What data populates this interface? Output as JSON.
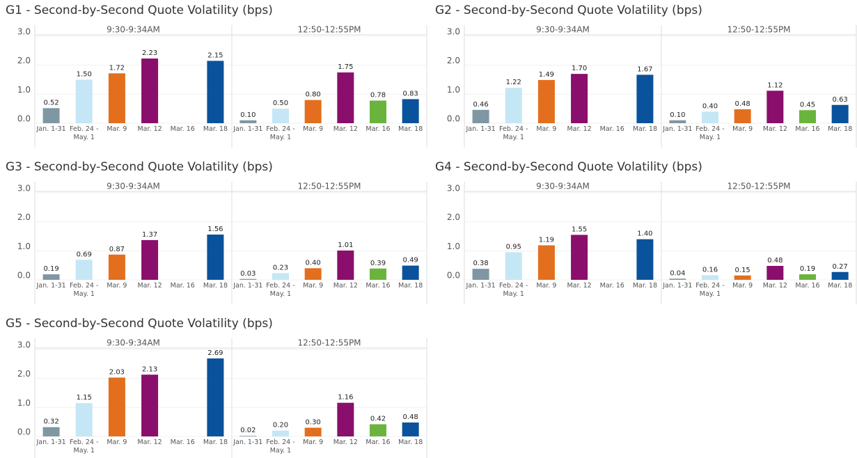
{
  "chart_data": [
    {
      "type": "bar",
      "title": "G1 - Second-by-Second Quote Volatility (bps)",
      "ylim": [
        0,
        3
      ],
      "yticks": [
        {
          "value": 0,
          "label": "0.0"
        },
        {
          "value": 1,
          "label": "1.0"
        },
        {
          "value": 2,
          "label": "2.0"
        },
        {
          "value": 3,
          "label": "3.0"
        }
      ],
      "grid": true,
      "colors": [
        "#7f97a2",
        "#c5e6f5",
        "#e36f1e",
        "#8a0e6c",
        "#6ab43e",
        "#0b529c"
      ],
      "panels": [
        {
          "title": "9:30-9:34AM",
          "categories": [
            "Jan. 1-31",
            "Feb. 24 - May. 1",
            "Mar. 9",
            "Mar. 12",
            "Mar. 16",
            "Mar. 18"
          ],
          "values": [
            0.52,
            1.5,
            1.72,
            2.23,
            null,
            2.15
          ],
          "value_labels": [
            "0.52",
            "1.50",
            "1.72",
            "2.23",
            null,
            "2.15"
          ]
        },
        {
          "title": "12:50-12:55PM",
          "categories": [
            "Jan. 1-31",
            "Feb. 24 - May. 1",
            "Mar. 9",
            "Mar. 12",
            "Mar. 16",
            "Mar. 18"
          ],
          "values": [
            0.1,
            0.5,
            0.8,
            1.75,
            0.78,
            0.83
          ],
          "value_labels": [
            "0.10",
            "0.50",
            "0.80",
            "1.75",
            "0.78",
            "0.83"
          ]
        }
      ]
    },
    {
      "type": "bar",
      "title": "G2 - Second-by-Second Quote Volatility (bps)",
      "ylim": [
        0,
        3
      ],
      "yticks": [
        {
          "value": 0,
          "label": "0.0"
        },
        {
          "value": 1,
          "label": "1.0"
        },
        {
          "value": 2,
          "label": "2.0"
        },
        {
          "value": 3,
          "label": "3.0"
        }
      ],
      "grid": true,
      "colors": [
        "#7f97a2",
        "#c5e6f5",
        "#e36f1e",
        "#8a0e6c",
        "#6ab43e",
        "#0b529c"
      ],
      "panels": [
        {
          "title": "9:30-9:34AM",
          "categories": [
            "Jan. 1-31",
            "Feb. 24 - May. 1",
            "Mar. 9",
            "Mar. 12",
            "Mar. 16",
            "Mar. 18"
          ],
          "values": [
            0.46,
            1.22,
            1.49,
            1.7,
            null,
            1.67
          ],
          "value_labels": [
            "0.46",
            "1.22",
            "1.49",
            "1.70",
            null,
            "1.67"
          ]
        },
        {
          "title": "12:50-12:55PM",
          "categories": [
            "Jan. 1-31",
            "Feb. 24 - May. 1",
            "Mar. 9",
            "Mar. 12",
            "Mar. 16",
            "Mar. 18"
          ],
          "values": [
            0.1,
            0.4,
            0.48,
            1.12,
            0.45,
            0.63
          ],
          "value_labels": [
            "0.10",
            "0.40",
            "0.48",
            "1.12",
            "0.45",
            "0.63"
          ]
        }
      ]
    },
    {
      "type": "bar",
      "title": "G3 - Second-by-Second Quote Volatility (bps)",
      "ylim": [
        0,
        3
      ],
      "yticks": [
        {
          "value": 0,
          "label": "0.0"
        },
        {
          "value": 1,
          "label": "1.0"
        },
        {
          "value": 2,
          "label": "2.0"
        },
        {
          "value": 3,
          "label": "3.0"
        }
      ],
      "grid": true,
      "colors": [
        "#7f97a2",
        "#c5e6f5",
        "#e36f1e",
        "#8a0e6c",
        "#6ab43e",
        "#0b529c"
      ],
      "panels": [
        {
          "title": "9:30-9:34AM",
          "categories": [
            "Jan. 1-31",
            "Feb. 24 - May. 1",
            "Mar. 9",
            "Mar. 12",
            "Mar. 16",
            "Mar. 18"
          ],
          "values": [
            0.19,
            0.69,
            0.87,
            1.37,
            null,
            1.56
          ],
          "value_labels": [
            "0.19",
            "0.69",
            "0.87",
            "1.37",
            null,
            "1.56"
          ]
        },
        {
          "title": "12:50-12:55PM",
          "categories": [
            "Jan. 1-31",
            "Feb. 24 - May. 1",
            "Mar. 9",
            "Mar. 12",
            "Mar. 16",
            "Mar. 18"
          ],
          "values": [
            0.03,
            0.23,
            0.4,
            1.01,
            0.39,
            0.49
          ],
          "value_labels": [
            "0.03",
            "0.23",
            "0.40",
            "1.01",
            "0.39",
            "0.49"
          ]
        }
      ]
    },
    {
      "type": "bar",
      "title": "G4 - Second-by-Second Quote Volatility (bps)",
      "ylim": [
        0,
        3
      ],
      "yticks": [
        {
          "value": 0,
          "label": "0.0"
        },
        {
          "value": 1,
          "label": "1.0"
        },
        {
          "value": 2,
          "label": "2.0"
        },
        {
          "value": 3,
          "label": "3.0"
        }
      ],
      "grid": true,
      "colors": [
        "#7f97a2",
        "#c5e6f5",
        "#e36f1e",
        "#8a0e6c",
        "#6ab43e",
        "#0b529c"
      ],
      "panels": [
        {
          "title": "9:30-9:34AM",
          "categories": [
            "Jan. 1-31",
            "Feb. 24 - May. 1",
            "Mar. 9",
            "Mar. 12",
            "Mar. 16",
            "Mar. 18"
          ],
          "values": [
            0.38,
            0.95,
            1.19,
            1.55,
            null,
            1.4
          ],
          "value_labels": [
            "0.38",
            "0.95",
            "1.19",
            "1.55",
            null,
            "1.40"
          ]
        },
        {
          "title": "12:50-12:55PM",
          "categories": [
            "Jan. 1-31",
            "Feb. 24 - May. 1",
            "Mar. 9",
            "Mar. 12",
            "Mar. 16",
            "Mar. 18"
          ],
          "values": [
            0.04,
            0.16,
            0.15,
            0.48,
            0.19,
            0.27
          ],
          "value_labels": [
            "0.04",
            "0.16",
            "0.15",
            "0.48",
            "0.19",
            "0.27"
          ]
        }
      ]
    },
    {
      "type": "bar",
      "title": "G5 - Second-by-Second Quote Volatility (bps)",
      "ylim": [
        0,
        3
      ],
      "yticks": [
        {
          "value": 0,
          "label": "0.0"
        },
        {
          "value": 1,
          "label": "1.0"
        },
        {
          "value": 2,
          "label": "2.0"
        },
        {
          "value": 3,
          "label": "3.0"
        }
      ],
      "grid": true,
      "colors": [
        "#7f97a2",
        "#c5e6f5",
        "#e36f1e",
        "#8a0e6c",
        "#6ab43e",
        "#0b529c"
      ],
      "panels": [
        {
          "title": "9:30-9:34AM",
          "categories": [
            "Jan. 1-31",
            "Feb. 24 - May. 1",
            "Mar. 9",
            "Mar. 12",
            "Mar. 16",
            "Mar. 18"
          ],
          "values": [
            0.32,
            1.15,
            2.03,
            2.13,
            null,
            2.69
          ],
          "value_labels": [
            "0.32",
            "1.15",
            "2.03",
            "2.13",
            null,
            "2.69"
          ]
        },
        {
          "title": "12:50-12:55PM",
          "categories": [
            "Jan. 1-31",
            "Feb. 24 - May. 1",
            "Mar. 9",
            "Mar. 12",
            "Mar. 16",
            "Mar. 18"
          ],
          "values": [
            0.02,
            0.2,
            0.3,
            1.16,
            0.42,
            0.48
          ],
          "value_labels": [
            "0.02",
            "0.20",
            "0.30",
            "1.16",
            "0.42",
            "0.48"
          ]
        }
      ]
    }
  ]
}
